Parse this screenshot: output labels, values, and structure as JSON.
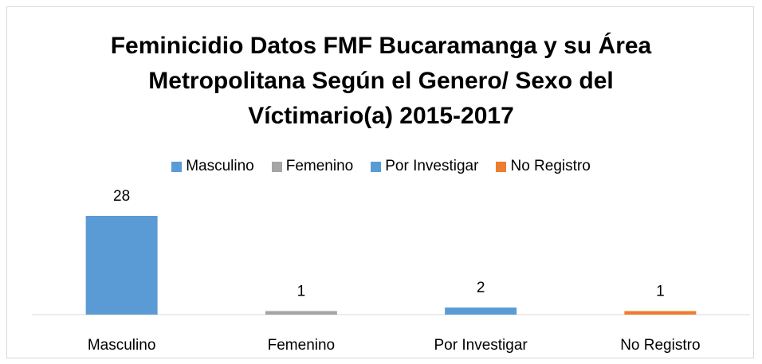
{
  "chart_data": {
    "type": "bar",
    "title": "Feminicidio Datos FMF Bucaramanga y su Área Metropolitana  Según el Genero/ Sexo del Víctimario(a) 2015-2017",
    "categories": [
      "Masculino",
      "Femenino",
      "Por Investigar",
      "No Registro"
    ],
    "values": [
      28,
      1,
      2,
      1
    ],
    "colors": [
      "#5b9bd5",
      "#a5a5a5",
      "#5b9bd5",
      "#ed7d31"
    ],
    "legend": "top"
  }
}
